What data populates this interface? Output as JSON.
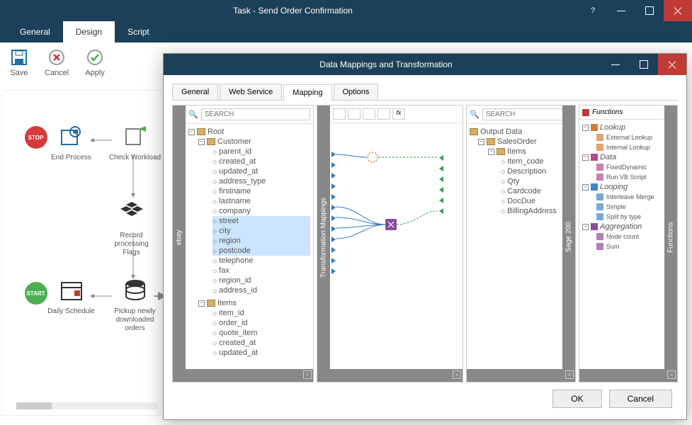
{
  "window": {
    "title": "Task - Send Order Confirmation",
    "help": "?"
  },
  "mainTabs": [
    {
      "label": "General"
    },
    {
      "label": "Design"
    },
    {
      "label": "Script"
    }
  ],
  "ribbon": [
    {
      "label": "Save"
    },
    {
      "label": "Cancel"
    },
    {
      "label": "Apply"
    }
  ],
  "canvasNodes": {
    "stop": "STOP",
    "start": "START",
    "endProcess": "End Process",
    "checkWorkload": "Check Workload",
    "recordFlags": "Record processing Flags",
    "dailySchedule": "Daily Schedule",
    "pickup": "Pickup newly downloaded orders"
  },
  "modal": {
    "title": "Data Mappings and Transformation",
    "subtabs": [
      {
        "label": "General"
      },
      {
        "label": "Web Service"
      },
      {
        "label": "Mapping"
      },
      {
        "label": "Options"
      }
    ],
    "searchPlaceholder": "SEARCH",
    "leftLabel": "ebay",
    "midLabel": "Transformation Mappings",
    "rightLabel": "Sage 200",
    "funcLabel": "Functions",
    "leftTree": {
      "root": "Root",
      "customer": "Customer",
      "items": "Items",
      "customerFields": [
        "parent_id",
        "created_at",
        "updated_at",
        "address_type",
        "firstname",
        "lastname",
        "company",
        "street",
        "city",
        "region",
        "postcode",
        "telephone",
        "fax",
        "region_id",
        "address_id"
      ],
      "itemFields": [
        "item_id",
        "order_id",
        "quote_item",
        "created_at",
        "updated_at"
      ]
    },
    "rightTree": {
      "root": "Output Data",
      "salesOrder": "SalesOrder",
      "items": "Items",
      "fields": [
        "Item_code",
        "Description",
        "Qty",
        "Cardcode",
        "DocDue",
        "BillingAddress"
      ]
    },
    "functions": {
      "title": "Functions",
      "groups": [
        {
          "name": "Lookup",
          "items": [
            "External Lookup",
            "Internal Lookup"
          ],
          "color": "#d97b33"
        },
        {
          "name": "Data",
          "items": [
            "FixedDynamic",
            "Run VB Script"
          ],
          "color": "#b14a8e"
        },
        {
          "name": "Looping",
          "items": [
            "Interleave Merge",
            "Simple",
            "Split by type"
          ],
          "color": "#3b88c4"
        },
        {
          "name": "Aggregation",
          "items": [
            "Node count",
            "Sum"
          ],
          "color": "#8a4aa0"
        }
      ]
    },
    "ok": "OK",
    "cancel": "Cancel"
  },
  "colors": {
    "hl": [
      "street",
      "city",
      "region",
      "postcode"
    ],
    "accent": "#1d4059"
  }
}
